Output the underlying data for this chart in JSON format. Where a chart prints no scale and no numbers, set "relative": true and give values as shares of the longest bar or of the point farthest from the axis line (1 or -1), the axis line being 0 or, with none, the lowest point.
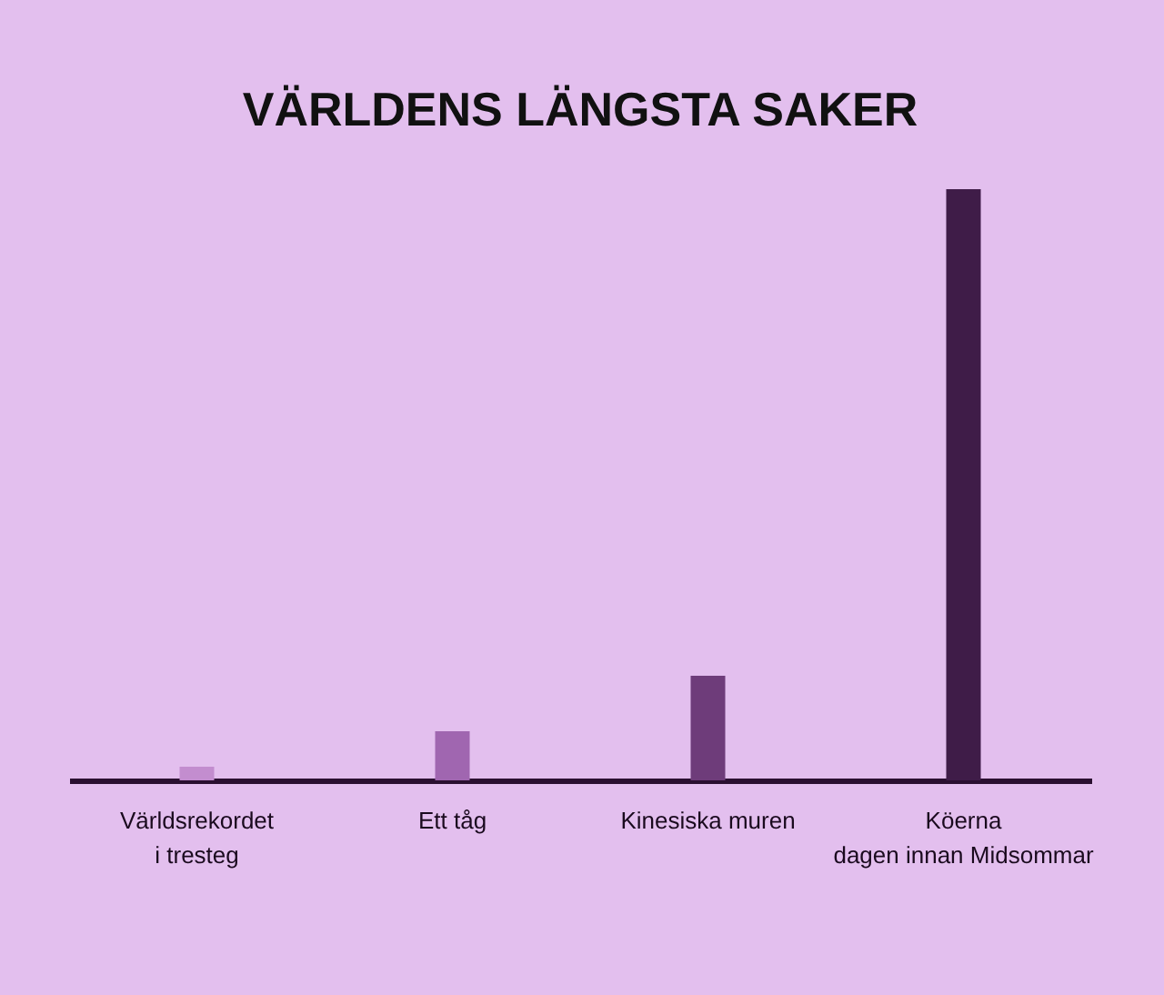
{
  "chart_data": {
    "type": "bar",
    "title": "VÄRLDENS LÄNGSTA SAKER",
    "categories": [
      "Världsrekordet\ni tresteg",
      "Ett tåg",
      "Kinesiska muren",
      "Köerna\ndagen innan Midsommar"
    ],
    "values": [
      0.023,
      0.083,
      0.177,
      1
    ],
    "colors": [
      "#c38dcf",
      "#a066b0",
      "#6e3c7a",
      "#3f1c48"
    ],
    "relative": true,
    "grid": false
  }
}
